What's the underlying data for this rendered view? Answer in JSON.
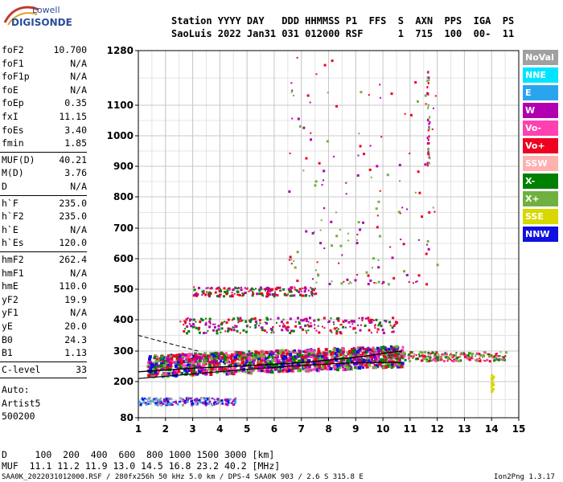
{
  "logo": {
    "line1": "Lowell",
    "line2": "DIGISONDE"
  },
  "header": {
    "line1": "Station YYYY DAY   DDD HHMMSS P1  FFS  S  AXN  PPS  IGA  PS",
    "line2": "SaoLuis 2022 Jan31 031 012000 RSF      1  715  100  00-  11"
  },
  "params": [
    {
      "label": "foF2",
      "value": "10.700"
    },
    {
      "label": "foF1",
      "value": "N/A"
    },
    {
      "label": "foF1p",
      "value": "N/A"
    },
    {
      "label": "foE",
      "value": "N/A"
    },
    {
      "label": "foEp",
      "value": "0.35"
    },
    {
      "label": "fxI",
      "value": "11.15"
    },
    {
      "label": "foEs",
      "value": "3.40"
    },
    {
      "label": "fmin",
      "value": "1.85"
    },
    {
      "label": "MUF(D)",
      "value": "40.21"
    },
    {
      "label": "M(D)",
      "value": "3.76"
    },
    {
      "label": "D",
      "value": "N/A"
    },
    {
      "label": "h`F",
      "value": "235.0"
    },
    {
      "label": "h`F2",
      "value": "235.0"
    },
    {
      "label": "h`E",
      "value": "N/A"
    },
    {
      "label": "h`Es",
      "value": "120.0"
    },
    {
      "label": "hmF2",
      "value": "262.4"
    },
    {
      "label": "hmF1",
      "value": "N/A"
    },
    {
      "label": "hmE",
      "value": "110.0"
    },
    {
      "label": "yF2",
      "value": "19.9"
    },
    {
      "label": "yF1",
      "value": "N/A"
    },
    {
      "label": "yE",
      "value": "20.0"
    },
    {
      "label": "B0",
      "value": "24.3"
    },
    {
      "label": "B1",
      "value": "1.13"
    },
    {
      "label": "C-level",
      "value": "33"
    }
  ],
  "auto_lines": [
    "Auto:",
    "Artist5",
    "500200"
  ],
  "legend": [
    {
      "label": "NoVal",
      "color": "#a0a0a0"
    },
    {
      "label": "NNE",
      "color": "#00e5ff"
    },
    {
      "label": "E",
      "color": "#2ba4f0"
    },
    {
      "label": "W",
      "color": "#b000b0"
    },
    {
      "label": "Vo-",
      "color": "#ff40b0"
    },
    {
      "label": "Vo+",
      "color": "#ee0020"
    },
    {
      "label": "SSW",
      "color": "#ffb0b0"
    },
    {
      "label": "X-",
      "color": "#008000"
    },
    {
      "label": "X+",
      "color": "#70b040"
    },
    {
      "label": "SSE",
      "color": "#d8d800"
    },
    {
      "label": "NNW",
      "color": "#1010e0"
    }
  ],
  "chart_data": {
    "type": "scatter",
    "title": "",
    "xlabel": "",
    "ylabel": "",
    "xlim": [
      1,
      15
    ],
    "ylim_labels": [
      80,
      1280
    ],
    "x_ticks": [
      1,
      2,
      3,
      4,
      5,
      6,
      7,
      8,
      9,
      10,
      11,
      12,
      13,
      14,
      15
    ],
    "y_ticks": [
      80,
      200,
      300,
      400,
      500,
      600,
      700,
      800,
      900,
      1000,
      1100,
      1280
    ],
    "y_scale": "nonlinear (ionogram virtual height)",
    "grid": true,
    "trace_clusters": [
      {
        "name": "Es layer",
        "x": [
          1.0,
          4.6
        ],
        "y": [
          125,
          150
        ],
        "colors": [
          "#1010e0",
          "#2ba4f0",
          "#b000b0",
          "#a0a0a0"
        ]
      },
      {
        "name": "F layer",
        "x": [
          1.3,
          10.7
        ],
        "y": [
          240,
          330
        ],
        "colors": [
          "#ee0020",
          "#1010e0",
          "#b000b0",
          "#008000",
          "#ff40b0",
          "#70b040"
        ]
      },
      {
        "name": "F spread",
        "x": [
          10.0,
          14.5
        ],
        "y": [
          270,
          300
        ],
        "colors": [
          "#ee0020",
          "#ff40b0",
          "#008000",
          "#70b040"
        ]
      },
      {
        "name": "2-hop F",
        "x": [
          2.5,
          10.5
        ],
        "y": [
          360,
          410
        ],
        "colors": [
          "#b000b0",
          "#ee0020",
          "#008000"
        ]
      },
      {
        "name": "3-hop F",
        "x": [
          3.0,
          7.5
        ],
        "y": [
          480,
          510
        ],
        "colors": [
          "#b000b0",
          "#ee0020",
          "#008000"
        ]
      },
      {
        "name": "high traces",
        "x": [
          6.5,
          12.0
        ],
        "y": [
          520,
          1280
        ],
        "colors": [
          "#b000b0",
          "#ee0020",
          "#70b040"
        ]
      }
    ],
    "model_curves": [
      {
        "name": "o-trace profile",
        "points": [
          [
            1,
            210
          ],
          [
            3,
            225
          ],
          [
            5,
            240
          ],
          [
            7,
            253
          ],
          [
            9,
            262
          ],
          [
            10.7,
            263
          ]
        ]
      },
      {
        "name": "o-trace virtual",
        "points": [
          [
            1,
            232
          ],
          [
            3,
            244
          ],
          [
            5,
            252
          ],
          [
            7,
            262
          ],
          [
            8.5,
            275
          ],
          [
            9.5,
            285
          ],
          [
            10.2,
            295
          ],
          [
            10.7,
            300
          ]
        ]
      }
    ]
  },
  "footer": {
    "line1": "D     100  200  400  600  800 1000 1500 3000 [km]",
    "line2": "MUF  11.1 11.2 11.9 13.0 14.5 16.8 23.2 40.2 [MHz]",
    "line3": "SAA0K_2022031012000.RSF / 280fx256h 50 kHz 5.0 km / DPS-4 SAA0K 903 / 2.6 S 315.8 E",
    "version": "Ion2Png 1.3.17"
  }
}
